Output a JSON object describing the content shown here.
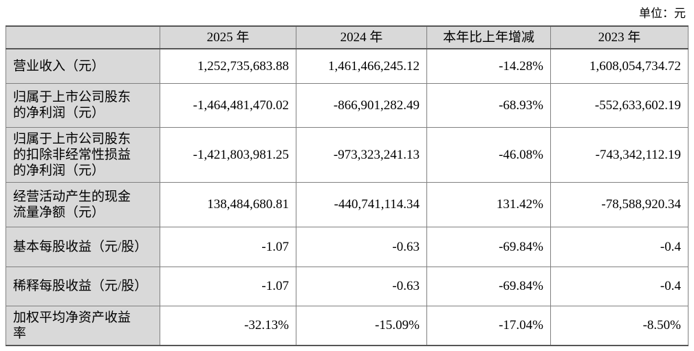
{
  "unit_label": "单位：元",
  "colors": {
    "header_bg": "#d9d9d9",
    "label_column_bg": "#d9d9d9",
    "grid_line": "#7f7f7f",
    "outer_border": "#555555",
    "text": "#000000",
    "page_bg": "#ffffff"
  },
  "table": {
    "headers": {
      "label": "",
      "y2025": "2025 年",
      "y2024": "2024 年",
      "change": "本年比上年增减",
      "y2023": "2023 年"
    },
    "rows": [
      {
        "label": "营业收入（元）",
        "y2025": "1,252,735,683.88",
        "y2024": "1,461,466,245.12",
        "change": "-14.28%",
        "y2023": "1,608,054,734.72"
      },
      {
        "label": "归属于上市公司股东的净利润（元）",
        "y2025": "-1,464,481,470.02",
        "y2024": "-866,901,282.49",
        "change": "-68.93%",
        "y2023": "-552,633,602.19"
      },
      {
        "label": "归属于上市公司股东的扣除非经常性损益的净利润（元）",
        "y2025": "-1,421,803,981.25",
        "y2024": "-973,323,241.13",
        "change": "-46.08%",
        "y2023": "-743,342,112.19"
      },
      {
        "label": "经营活动产生的现金流量净额（元）",
        "y2025": "138,484,680.81",
        "y2024": "-440,741,114.34",
        "change": "131.42%",
        "y2023": "-78,588,920.34"
      },
      {
        "label": "基本每股收益（元/股）",
        "y2025": "-1.07",
        "y2024": "-0.63",
        "change": "-69.84%",
        "y2023": "-0.4"
      },
      {
        "label": "稀释每股收益（元/股）",
        "y2025": "-1.07",
        "y2024": "-0.63",
        "change": "-69.84%",
        "y2023": "-0.4"
      },
      {
        "label": "加权平均净资产收益率",
        "y2025": "-32.13%",
        "y2024": "-15.09%",
        "change": "-17.04%",
        "y2023": "-8.50%"
      }
    ]
  }
}
